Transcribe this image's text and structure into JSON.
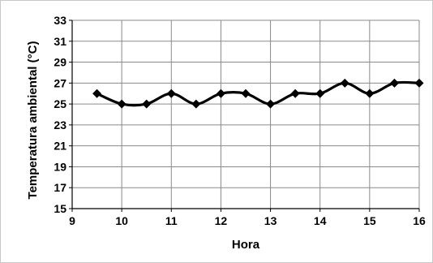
{
  "chart_data": {
    "type": "line",
    "title": "",
    "xlabel": "Hora",
    "ylabel": "Temperatura ambiental  (°C)",
    "xlim": [
      9,
      16
    ],
    "ylim": [
      15,
      33
    ],
    "x_ticks": [
      "9",
      "10",
      "11",
      "12",
      "13",
      "14",
      "15",
      "16"
    ],
    "y_ticks": [
      "15",
      "17",
      "19",
      "21",
      "23",
      "25",
      "27",
      "29",
      "31",
      "33"
    ],
    "grid": true,
    "legend": "none",
    "series": [
      {
        "x": [
          9.5,
          10,
          10.5,
          11,
          11.5,
          12,
          12.5,
          13,
          13.5,
          14,
          14.5,
          15,
          15.5,
          16
        ],
        "y": [
          26,
          25,
          25,
          26,
          25,
          26,
          26,
          25,
          26,
          26,
          27,
          26,
          27,
          27
        ]
      }
    ],
    "line_color": "#000000",
    "marker": "diamond"
  }
}
